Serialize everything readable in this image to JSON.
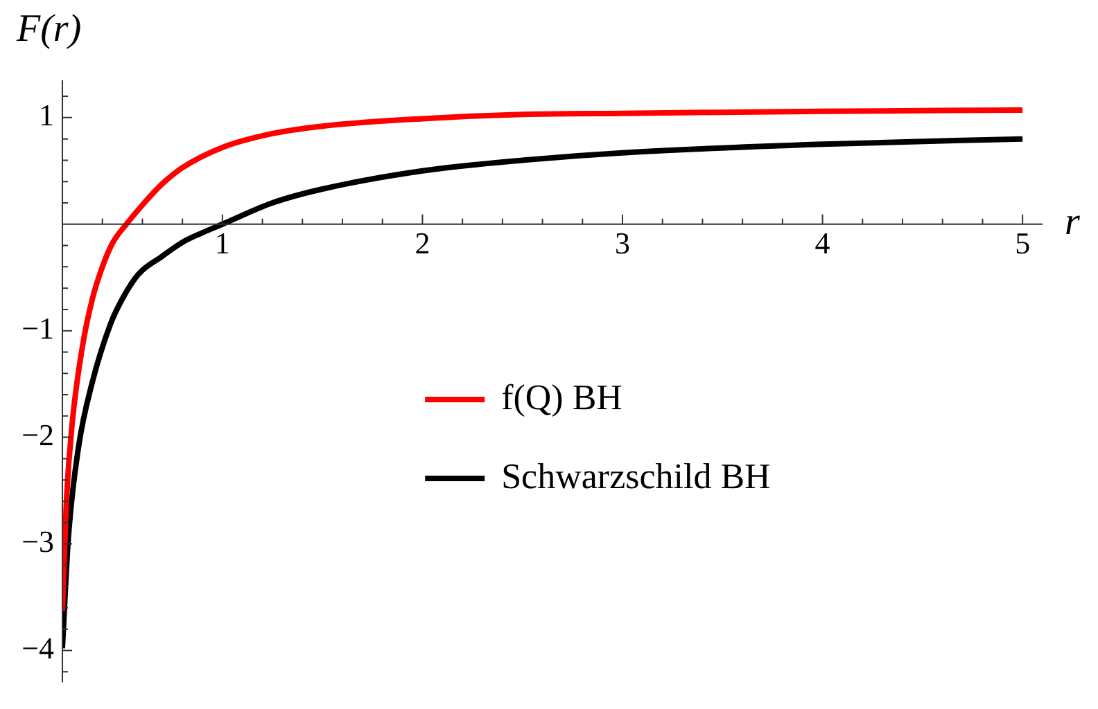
{
  "chart_data": {
    "type": "line",
    "xlabel": "r",
    "ylabel": "F(r)",
    "xlim": [
      0.2,
      5.1
    ],
    "ylim": [
      -4.3,
      1.35
    ],
    "xticks": [
      {
        "value": 0.4,
        "label": null
      },
      {
        "value": 0.6,
        "label": null
      },
      {
        "value": 0.8,
        "label": null
      },
      1,
      {
        "value": 1.2,
        "label": null
      },
      {
        "value": 1.4,
        "label": null
      },
      {
        "value": 1.6,
        "label": null
      },
      {
        "value": 1.8,
        "label": null
      },
      2,
      {
        "value": 2.2,
        "label": null
      },
      {
        "value": 2.4,
        "label": null
      },
      {
        "value": 2.6,
        "label": null
      },
      {
        "value": 2.8,
        "label": null
      },
      3,
      {
        "value": 3.2,
        "label": null
      },
      {
        "value": 3.4,
        "label": null
      },
      {
        "value": 3.6,
        "label": null
      },
      {
        "value": 3.8,
        "label": null
      },
      4,
      {
        "value": 4.2,
        "label": null
      },
      {
        "value": 4.4,
        "label": null
      },
      {
        "value": 4.6,
        "label": null
      },
      {
        "value": 4.8,
        "label": null
      },
      5
    ],
    "yticks": [
      {
        "value": -4.2,
        "label": null
      },
      -4,
      {
        "value": -3.8,
        "label": null
      },
      {
        "value": -3.6,
        "label": null
      },
      {
        "value": -3.4,
        "label": null
      },
      {
        "value": -3.2,
        "label": null
      },
      -3,
      {
        "value": -2.8,
        "label": null
      },
      {
        "value": -2.6,
        "label": null
      },
      {
        "value": -2.4,
        "label": null
      },
      {
        "value": -2.2,
        "label": null
      },
      -2,
      {
        "value": -1.8,
        "label": null
      },
      {
        "value": -1.6,
        "label": null
      },
      {
        "value": -1.4,
        "label": null
      },
      {
        "value": -1.2,
        "label": null
      },
      -1,
      {
        "value": -0.8,
        "label": null
      },
      {
        "value": -0.6,
        "label": null
      },
      {
        "value": -0.4,
        "label": null
      },
      {
        "value": -0.2,
        "label": null
      },
      {
        "value": 0.2,
        "label": null
      },
      {
        "value": 0.4,
        "label": null
      },
      {
        "value": 0.6,
        "label": null
      },
      {
        "value": 0.8,
        "label": null
      },
      1,
      {
        "value": 1.2,
        "label": null
      }
    ],
    "grid": false,
    "legend": "right",
    "marker": "none",
    "line_style": "solid",
    "series": [
      {
        "name": "f(Q) BH",
        "color": "#ff0000",
        "x": [
          0.2,
          0.22,
          0.25,
          0.3,
          0.35,
          0.4,
          0.45,
          0.52,
          0.6,
          0.7,
          0.8,
          1,
          1.25,
          1.5,
          2,
          2.5,
          3,
          4,
          5
        ],
        "values": [
          -3.63,
          -2.6,
          -1.85,
          -1.15,
          -0.7,
          -0.4,
          -0.18,
          0,
          0.18,
          0.38,
          0.53,
          0.72,
          0.85,
          0.92,
          0.99,
          1.03,
          1.04,
          1.06,
          1.07
        ]
      },
      {
        "name": "Schwarzschild BH",
        "color": "#000000",
        "x": [
          0.2,
          0.23,
          0.28,
          0.35,
          0.44,
          0.5,
          0.58,
          0.7,
          0.8,
          0.9,
          1,
          1.25,
          1.5,
          2,
          2.5,
          3,
          4,
          5
        ],
        "values": [
          -3.98,
          -2.94,
          -2.1,
          -1.48,
          -0.94,
          -0.7,
          -0.47,
          -0.3,
          -0.17,
          -0.08,
          0,
          0.2,
          0.33,
          0.5,
          0.6,
          0.67,
          0.75,
          0.8
        ]
      }
    ]
  }
}
